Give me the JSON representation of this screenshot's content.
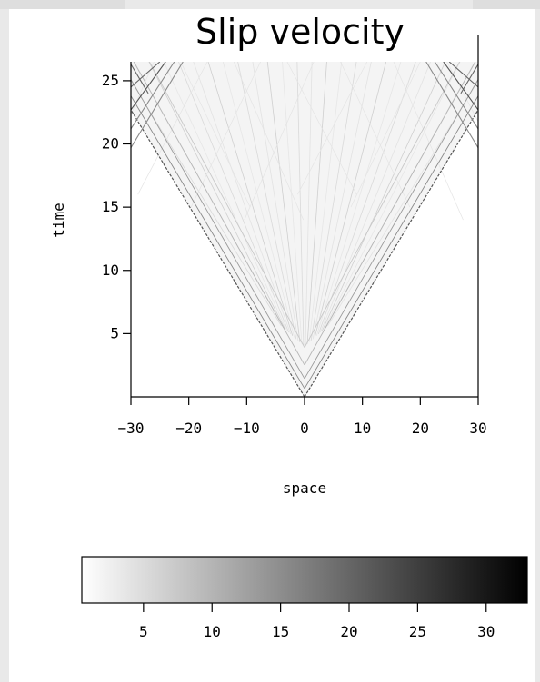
{
  "chart_data": {
    "type": "heatmap",
    "title": "Slip velocity",
    "xlabel": "space",
    "ylabel": "time",
    "xlim": [
      -30,
      30
    ],
    "ylim": [
      0,
      26.5
    ],
    "x_ticks": [
      -30,
      -20,
      -10,
      0,
      10,
      20,
      30
    ],
    "y_ticks": [
      5,
      10,
      15,
      20,
      25
    ],
    "colormap": "white-to-black grayscale",
    "colorbar": {
      "orientation": "horizontal",
      "range": [
        0.5,
        33
      ],
      "ticks": [
        5,
        10,
        15,
        20,
        25,
        30
      ]
    },
    "rupture_fronts": [
      {
        "name": "left front",
        "points": [
          [
            0,
            0
          ],
          [
            -30,
            22.7
          ]
        ]
      },
      {
        "name": "right front",
        "points": [
          [
            0,
            0
          ],
          [
            30,
            22.7
          ]
        ]
      }
    ],
    "reflected_fronts": [
      {
        "points": [
          [
            -30,
            22.7
          ],
          [
            -24,
            26.5
          ]
        ]
      },
      {
        "points": [
          [
            30,
            22.7
          ],
          [
            24,
            26.5
          ]
        ]
      }
    ]
  },
  "colors": {
    "background": "#e9e9e9",
    "panel": "#ffffff",
    "axis": "#000000",
    "colorbar_low": "#ffffff",
    "colorbar_high": "#000000"
  }
}
